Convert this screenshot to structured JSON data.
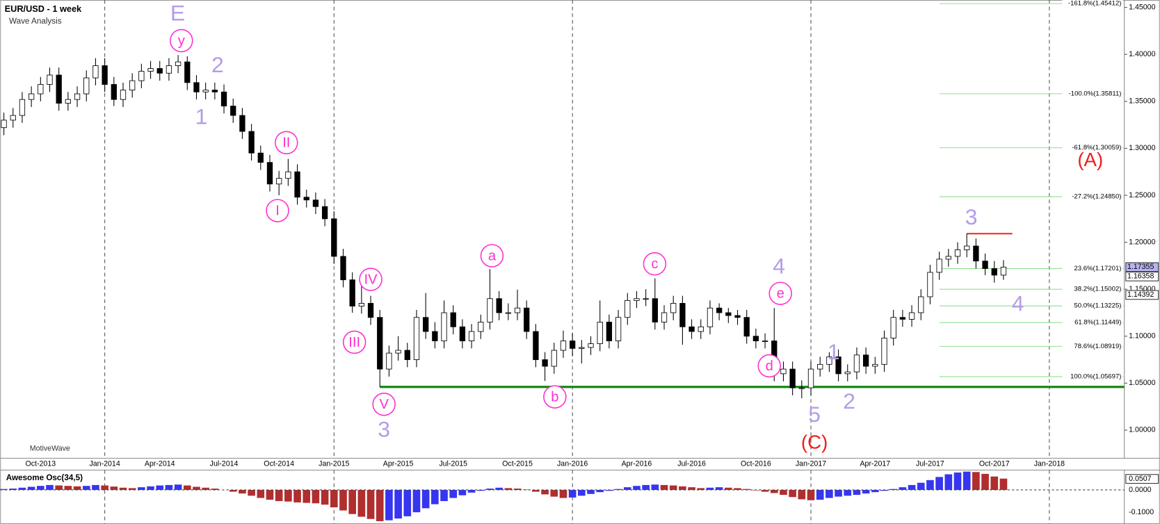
{
  "chart_data": [
    {
      "type": "candlestick",
      "title": "EUR/USD - 1 week",
      "subtitle": "Wave Analysis",
      "watermark": "MotiveWave",
      "categories": [
        null,
        null,
        null,
        null,
        "Oct-2013",
        null,
        null,
        null,
        null,
        null,
        null,
        "Jan-2014",
        null,
        null,
        null,
        null,
        null,
        "Apr-2014",
        null,
        null,
        null,
        null,
        null,
        null,
        "Jul-2014",
        null,
        null,
        null,
        null,
        null,
        "Oct-2014",
        null,
        null,
        null,
        null,
        null,
        "Jan-2015",
        null,
        null,
        null,
        null,
        null,
        null,
        "Apr-2015",
        null,
        null,
        null,
        null,
        null,
        "Jul-2015",
        null,
        null,
        null,
        null,
        null,
        null,
        "Oct-2015",
        null,
        null,
        null,
        null,
        null,
        "Jan-2016",
        null,
        null,
        null,
        null,
        null,
        null,
        "Apr-2016",
        null,
        null,
        null,
        null,
        null,
        "Jul-2016",
        null,
        null,
        null,
        null,
        null,
        null,
        "Oct-2016",
        null,
        null,
        null,
        null,
        null,
        "Jan-2017",
        null,
        null,
        null,
        null,
        null,
        null,
        "Apr-2017",
        null,
        null,
        null,
        null,
        null,
        "Jul-2017",
        null,
        null,
        null,
        null,
        null,
        null,
        "Oct-2017",
        null,
        null,
        null,
        null,
        null,
        "Jan-2018",
        null,
        null,
        null,
        null,
        null,
        null,
        null
      ],
      "open": [
        1.322,
        1.33,
        1.335,
        1.352,
        1.358,
        1.368,
        1.378,
        1.348,
        1.352,
        1.358,
        1.375,
        1.388,
        1.368,
        1.352,
        1.362,
        1.372,
        1.382,
        1.385,
        1.38,
        1.388,
        1.392,
        1.37,
        1.36,
        1.362,
        1.36,
        1.345,
        1.335,
        1.318,
        1.295,
        1.285,
        1.262,
        1.268,
        1.275,
        1.248,
        1.245,
        1.238,
        1.225,
        1.185,
        1.16,
        1.132,
        1.135,
        1.12,
        1.065,
        1.082,
        1.085,
        1.075,
        1.12,
        1.105,
        1.095,
        1.125,
        1.11,
        1.095,
        1.105,
        1.115,
        1.14,
        1.125,
        1.125,
        1.13,
        1.105,
        1.075,
        1.068,
        1.085,
        1.095,
        1.087,
        1.088,
        1.092,
        1.115,
        1.095,
        1.12,
        1.138,
        1.14,
        1.14,
        1.115,
        1.125,
        1.135,
        1.11,
        1.105,
        1.11,
        1.13,
        1.125,
        1.122,
        1.12,
        1.1,
        1.095,
        1.095,
        1.06,
        1.065,
        1.045,
        1.045,
        1.065,
        1.07,
        1.078,
        1.06,
        1.062,
        1.08,
        1.068,
        1.07,
        1.098,
        1.12,
        1.118,
        1.125,
        1.142,
        1.168,
        1.182,
        1.185,
        1.192,
        1.196,
        1.18,
        1.172,
        1.165,
        null,
        null,
        null,
        null,
        null,
        null,
        null,
        null,
        null,
        null,
        null,
        null
      ],
      "high": [
        1.338,
        1.343,
        1.36,
        1.366,
        1.376,
        1.386,
        1.386,
        1.36,
        1.366,
        1.383,
        1.396,
        1.396,
        1.376,
        1.37,
        1.38,
        1.39,
        1.393,
        1.393,
        1.396,
        1.3993,
        1.398,
        1.378,
        1.37,
        1.37,
        1.368,
        1.353,
        1.343,
        1.326,
        1.303,
        1.293,
        1.276,
        1.2887,
        1.283,
        1.256,
        1.253,
        1.246,
        1.233,
        1.193,
        1.168,
        1.153,
        1.143,
        1.128,
        1.09,
        1.1,
        1.093,
        1.128,
        1.146,
        1.115,
        1.138,
        1.133,
        1.118,
        1.113,
        1.123,
        1.1714,
        1.148,
        1.135,
        1.1495,
        1.138,
        1.113,
        1.083,
        1.093,
        1.106,
        1.103,
        1.096,
        1.1,
        1.138,
        1.123,
        1.128,
        1.146,
        1.148,
        1.15,
        1.1616,
        1.133,
        1.143,
        1.143,
        1.118,
        1.118,
        1.138,
        1.135,
        1.13,
        1.128,
        1.128,
        1.108,
        1.103,
        1.13,
        1.073,
        1.073,
        1.053,
        1.073,
        1.078,
        1.083,
        1.086,
        1.07,
        1.088,
        1.088,
        1.078,
        1.106,
        1.128,
        1.128,
        1.133,
        1.15,
        1.176,
        1.19,
        1.193,
        1.2,
        1.2092,
        1.204,
        1.188,
        1.18,
        1.181,
        null,
        null,
        null,
        null,
        null,
        null,
        null,
        null,
        null,
        null,
        null,
        null
      ],
      "low": [
        1.314,
        1.322,
        1.327,
        1.344,
        1.35,
        1.36,
        1.34,
        1.34,
        1.344,
        1.35,
        1.367,
        1.36,
        1.345,
        1.344,
        1.354,
        1.364,
        1.374,
        1.372,
        1.372,
        1.38,
        1.362,
        1.352,
        1.352,
        1.352,
        1.337,
        1.327,
        1.31,
        1.287,
        1.277,
        1.254,
        1.25,
        1.26,
        1.24,
        1.237,
        1.23,
        1.217,
        1.177,
        1.152,
        1.125,
        1.124,
        1.112,
        1.046,
        1.057,
        1.074,
        1.067,
        1.067,
        1.097,
        1.087,
        1.087,
        1.102,
        1.087,
        1.087,
        1.097,
        1.107,
        1.117,
        1.117,
        1.117,
        1.097,
        1.067,
        1.0524,
        1.06,
        1.077,
        1.079,
        1.071,
        1.08,
        1.084,
        1.087,
        1.087,
        1.112,
        1.13,
        1.132,
        1.107,
        1.107,
        1.117,
        1.091,
        1.097,
        1.097,
        1.102,
        1.117,
        1.114,
        1.112,
        1.092,
        1.087,
        1.087,
        1.052,
        1.052,
        1.037,
        1.034,
        1.037,
        1.057,
        1.062,
        1.052,
        1.052,
        1.054,
        1.06,
        1.06,
        1.062,
        1.09,
        1.11,
        1.11,
        1.117,
        1.134,
        1.16,
        1.174,
        1.177,
        1.184,
        1.172,
        1.165,
        1.157,
        1.16,
        null,
        null,
        null,
        null,
        null,
        null,
        null,
        null,
        null,
        null,
        null,
        null
      ],
      "close": [
        1.33,
        1.335,
        1.352,
        1.358,
        1.368,
        1.378,
        1.348,
        1.352,
        1.358,
        1.375,
        1.388,
        1.368,
        1.352,
        1.362,
        1.372,
        1.382,
        1.385,
        1.38,
        1.388,
        1.392,
        1.37,
        1.36,
        1.362,
        1.36,
        1.345,
        1.335,
        1.318,
        1.295,
        1.285,
        1.262,
        1.268,
        1.275,
        1.248,
        1.245,
        1.238,
        1.225,
        1.185,
        1.16,
        1.132,
        1.135,
        1.12,
        1.065,
        1.082,
        1.085,
        1.075,
        1.12,
        1.105,
        1.095,
        1.125,
        1.11,
        1.095,
        1.105,
        1.115,
        1.14,
        1.125,
        1.125,
        1.13,
        1.105,
        1.075,
        1.068,
        1.085,
        1.095,
        1.087,
        1.088,
        1.092,
        1.115,
        1.095,
        1.12,
        1.138,
        1.14,
        1.14,
        1.115,
        1.125,
        1.135,
        1.11,
        1.105,
        1.11,
        1.13,
        1.125,
        1.122,
        1.12,
        1.1,
        1.095,
        1.095,
        1.06,
        1.065,
        1.045,
        1.045,
        1.065,
        1.07,
        1.078,
        1.06,
        1.062,
        1.08,
        1.068,
        1.07,
        1.098,
        1.12,
        1.118,
        1.125,
        1.142,
        1.168,
        1.182,
        1.185,
        1.192,
        1.196,
        1.18,
        1.172,
        1.165,
        1.17355,
        null,
        null,
        null,
        null,
        null,
        null,
        null,
        null,
        null,
        null,
        null,
        null
      ],
      "up_color": "#ffffff",
      "down_color": "#000000",
      "ylim": [
        0.9701,
        1.4579
      ],
      "yticks": [
        {
          "value": 1,
          "label": "1.00000"
        },
        {
          "value": 1.05,
          "label": "1.05000"
        },
        {
          "value": 1.1,
          "label": "1.10000"
        },
        {
          "value": 1.15,
          "label": "1.15000"
        },
        {
          "value": 1.2,
          "label": "1.20000"
        },
        {
          "value": 1.25,
          "label": "1.25000"
        },
        {
          "value": 1.3,
          "label": "1.30000"
        },
        {
          "value": 1.35,
          "label": "1.35000"
        },
        {
          "value": 1.4,
          "label": "1.40000"
        },
        {
          "value": 1.45,
          "label": "1.45000"
        }
      ],
      "price_labels": [
        1.16358,
        1.14392
      ],
      "support_line": {
        "value": 1.046,
        "color": "#138a13"
      },
      "resistance_line": {
        "value": 1.2092,
        "color": "#ff2a1a"
      },
      "fib_levels": [
        {
          "label": "-161.8%(1.45412)",
          "value": 1.45412
        },
        {
          "label": "-100.0%(1.35811)",
          "value": 1.35811
        },
        {
          "label": "-61.8%(1.30059)",
          "value": 1.30059
        },
        {
          "label": "-27.2%(1.24850)",
          "value": 1.2485
        },
        {
          "label": "23.6%(1.17201)",
          "value": 1.17201
        },
        {
          "label": "38.2%(1.15002)",
          "value": 1.15002
        },
        {
          "label": "50.0%(1.13225)",
          "value": 1.13225
        },
        {
          "label": "61.8%(1.11449)",
          "value": 1.11449
        },
        {
          "label": "78.6%(1.08919)",
          "value": 1.08919
        },
        {
          "label": "100.0%(1.05697)",
          "value": 1.05697
        }
      ],
      "fib_color": "#8fe08f",
      "annotations": [
        "E",
        "y",
        "2",
        "1",
        "II",
        "I",
        "IV",
        "III",
        "V",
        "3",
        "a",
        "b",
        "c",
        "4",
        "e",
        "d",
        "1",
        "2",
        "5",
        "(C)",
        "3",
        "4",
        "(A)"
      ]
    },
    {
      "type": "bar",
      "title": "Awesome Osc(34,5)",
      "values": [
        0.004,
        0.006,
        0.01,
        0.014,
        0.018,
        0.022,
        0.02,
        0.018,
        0.016,
        0.018,
        0.022,
        0.02,
        0.015,
        0.01,
        0.008,
        0.012,
        0.016,
        0.02,
        0.022,
        0.024,
        0.02,
        0.014,
        0.01,
        0.006,
        0.0,
        -0.008,
        -0.016,
        -0.026,
        -0.036,
        -0.044,
        -0.05,
        -0.052,
        -0.056,
        -0.058,
        -0.06,
        -0.066,
        -0.078,
        -0.092,
        -0.108,
        -0.12,
        -0.13,
        -0.14,
        -0.136,
        -0.128,
        -0.118,
        -0.1,
        -0.082,
        -0.064,
        -0.05,
        -0.036,
        -0.024,
        -0.012,
        -0.004,
        0.006,
        0.01,
        0.008,
        0.006,
        0.002,
        -0.008,
        -0.02,
        -0.03,
        -0.036,
        -0.034,
        -0.026,
        -0.018,
        -0.01,
        -0.004,
        0.004,
        0.012,
        0.018,
        0.022,
        0.024,
        0.022,
        0.02,
        0.016,
        0.012,
        0.008,
        0.01,
        0.012,
        0.01,
        0.008,
        0.004,
        -0.002,
        -0.008,
        -0.014,
        -0.022,
        -0.032,
        -0.042,
        -0.046,
        -0.044,
        -0.036,
        -0.03,
        -0.026,
        -0.022,
        -0.016,
        -0.01,
        -0.004,
        0.004,
        0.012,
        0.022,
        0.032,
        0.044,
        0.058,
        0.07,
        0.078,
        0.082,
        0.08,
        0.072,
        0.06,
        0.0507,
        null,
        null,
        null,
        null,
        null,
        null,
        null,
        null,
        null,
        null,
        null,
        null
      ],
      "up_color": "#3636f0",
      "down_color": "#b02e2e",
      "ylim": [
        -0.146,
        0.0857
      ],
      "yticks": [
        {
          "value": 0,
          "label": "0.0000"
        },
        {
          "value": -0.1,
          "label": "-0.1000"
        }
      ]
    }
  ]
}
